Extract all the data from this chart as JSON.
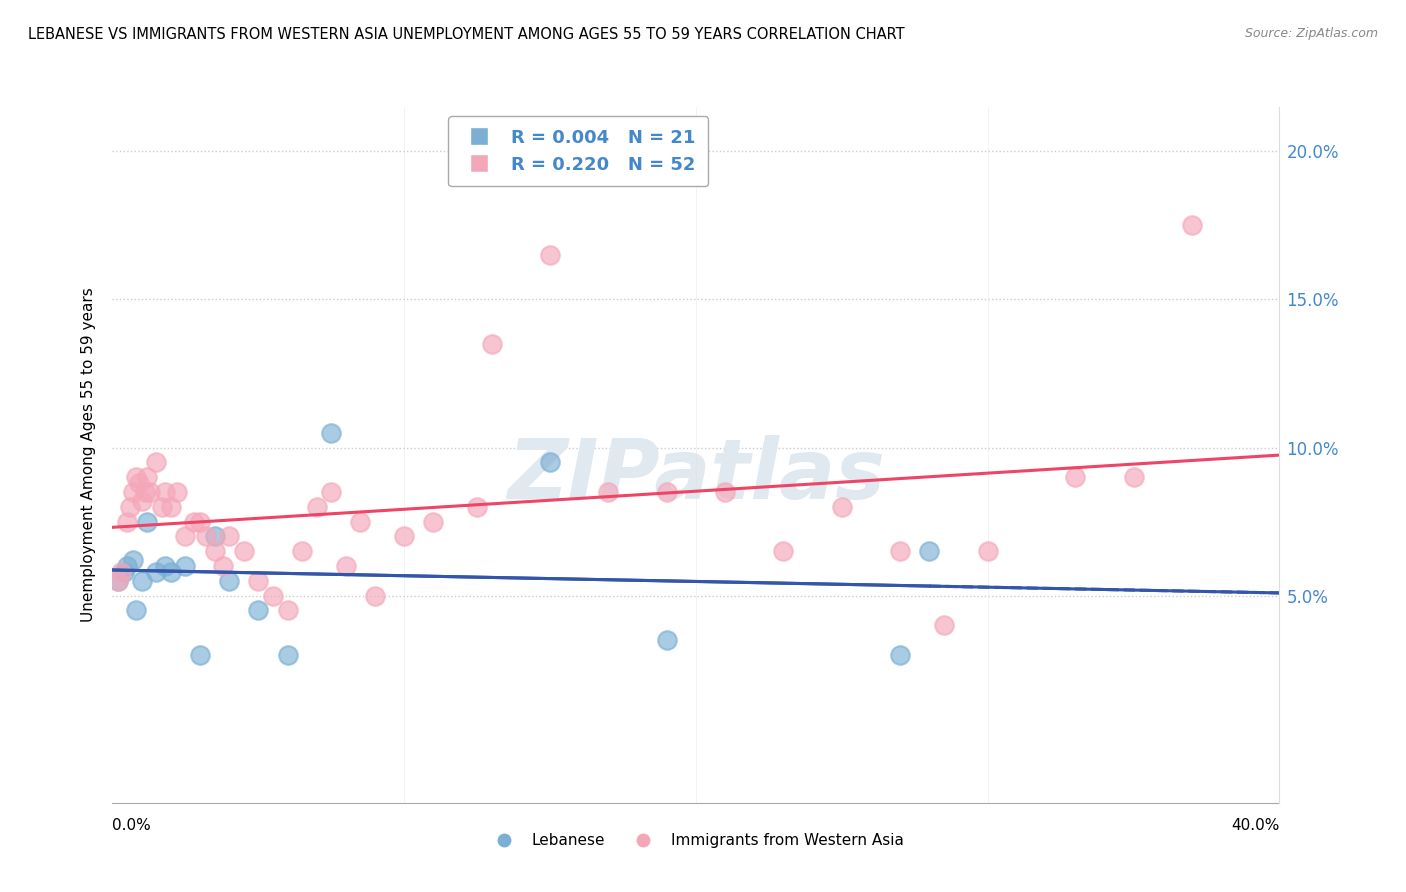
{
  "title": "LEBANESE VS IMMIGRANTS FROM WESTERN ASIA UNEMPLOYMENT AMONG AGES 55 TO 59 YEARS CORRELATION CHART",
  "source": "Source: ZipAtlas.com",
  "ylabel": "Unemployment Among Ages 55 to 59 years",
  "ylabel_right_ticks": [
    "20.0%",
    "15.0%",
    "10.0%",
    "5.0%"
  ],
  "ylabel_right_vals": [
    20.0,
    15.0,
    10.0,
    5.0
  ],
  "xmin": 0.0,
  "xmax": 40.0,
  "ymin": -2.0,
  "ymax": 21.5,
  "lebanese_color": "#7BAFD4",
  "western_asia_color": "#F4A7B9",
  "lebanese_line_color": "#3355AA",
  "western_asia_line_color": "#EE4466",
  "watermark_text": "ZIPatlas",
  "grid_color": "#CCCCCC",
  "bg_color": "#FFFFFF",
  "lebanese_x": [
    0.2,
    0.4,
    0.5,
    0.7,
    0.8,
    1.0,
    1.2,
    1.5,
    1.8,
    2.0,
    2.5,
    3.0,
    3.5,
    4.0,
    5.0,
    6.0,
    7.5,
    15.0,
    19.0,
    27.0,
    28.0
  ],
  "lebanese_y": [
    5.5,
    5.8,
    6.0,
    6.2,
    4.5,
    5.5,
    7.5,
    5.8,
    6.0,
    5.8,
    6.0,
    3.0,
    7.0,
    5.5,
    4.5,
    3.0,
    10.5,
    9.5,
    3.5,
    3.0,
    6.5
  ],
  "western_asia_x": [
    0.2,
    0.3,
    0.5,
    0.6,
    0.7,
    0.8,
    0.9,
    1.0,
    1.1,
    1.2,
    1.3,
    1.5,
    1.7,
    1.8,
    2.0,
    2.2,
    2.5,
    2.8,
    3.0,
    3.2,
    3.5,
    3.8,
    4.0,
    4.5,
    5.0,
    5.5,
    6.0,
    6.5,
    7.0,
    7.5,
    8.0,
    8.5,
    9.0,
    10.0,
    11.0,
    12.5,
    13.0,
    15.0,
    17.0,
    19.0,
    21.0,
    23.0,
    25.0,
    27.0,
    28.5,
    30.0,
    33.0,
    35.0,
    37.0
  ],
  "western_asia_y": [
    5.5,
    5.8,
    7.5,
    8.0,
    8.5,
    9.0,
    8.8,
    8.2,
    8.5,
    9.0,
    8.5,
    9.5,
    8.0,
    8.5,
    8.0,
    8.5,
    7.0,
    7.5,
    7.5,
    7.0,
    6.5,
    6.0,
    7.0,
    6.5,
    5.5,
    5.0,
    4.5,
    6.5,
    8.0,
    8.5,
    6.0,
    7.5,
    5.0,
    7.0,
    7.5,
    8.0,
    13.5,
    16.5,
    8.5,
    8.5,
    8.5,
    6.5,
    8.0,
    6.5,
    4.0,
    6.5,
    9.0,
    9.0,
    17.5
  ],
  "leb_trend_x": [
    0.0,
    40.0
  ],
  "leb_trend_y": [
    6.0,
    6.2
  ],
  "wa_trend_x": [
    0.0,
    40.0
  ],
  "wa_trend_y": [
    5.8,
    9.0
  ]
}
